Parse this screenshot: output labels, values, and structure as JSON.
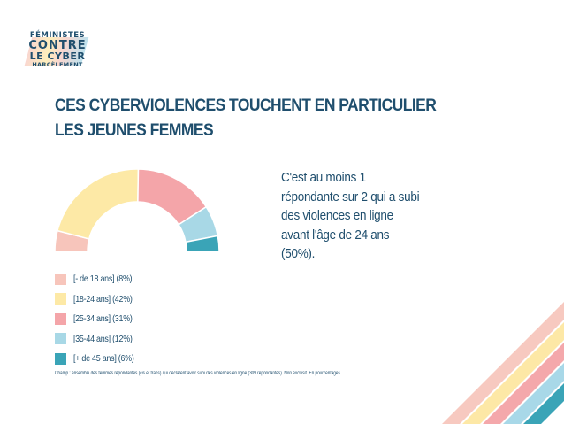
{
  "logo": {
    "line1": "FÉMINISTES",
    "line2": "CONTRE",
    "line3": "LE CYBER",
    "line4": "HARCÈLEMENT"
  },
  "title": {
    "line1": "CES CYBERVIOLENCES TOUCHENT EN PARTICULIER",
    "line2": "LES JEUNES FEMMES"
  },
  "callout": {
    "lines": [
      "C'est au moins 1",
      "répondante sur 2 qui a subi",
      "des violences en ligne",
      "avant l'âge de 24 ans",
      "(50%)."
    ]
  },
  "source": "Champ : ensemble des femmes répondantes (cis et trans) qui déclarent avoir subi des violences en ligne (309 répondantes). Non exclusif. En pourcentages.",
  "chart_data": {
    "type": "pie",
    "subtype": "half-donut",
    "unit": "%",
    "categories": [
      "[- de 18 ans]",
      "[18-24 ans]",
      "[25-34 ans]",
      "[35-44 ans]",
      "[+ de 45 ans]"
    ],
    "values": [
      8,
      42,
      31,
      12,
      6
    ],
    "legend_labels": [
      "[- de 18 ans] (8%)",
      "[18-24 ans] (42%)",
      "[25-34 ans] (31%)",
      "[35-44 ans] (12%)",
      "[+ de 45 ans] (6%)"
    ],
    "colors": [
      "#f7c5bb",
      "#fde9a6",
      "#f4a5a9",
      "#a8d8e6",
      "#3aa4b7"
    ],
    "legend_position": "bottom-left"
  },
  "decoration": {
    "stripe_colors": [
      "#f7c9c0",
      "#fde8a6",
      "#f4a8ab",
      "#a8d8e8",
      "#3aa4b7"
    ]
  }
}
